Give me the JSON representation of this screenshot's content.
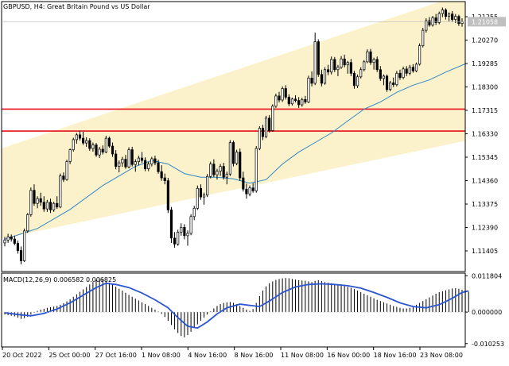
{
  "chart_data": {
    "type": "candlestick",
    "title": "GBPUSD, H4:  Great Britain Pound vs US Dollar",
    "price_axis": {
      "ylim": [
        1.106,
        1.219
      ],
      "tick_labels": [
        "1.21255",
        "1.20270",
        "1.19285",
        "1.18300",
        "1.17315",
        "1.16330",
        "1.15345",
        "1.14360",
        "1.13375",
        "1.12390",
        "1.11405"
      ],
      "current_price_label": "1.21058",
      "current_price": 1.21058
    },
    "x_axis": {
      "tick_labels": [
        "20 Oct 2022",
        "25 Oct 00:00",
        "27 Oct 16:00",
        "1 Nov 08:00",
        "4 Nov 16:00",
        "8 Nov 16:00",
        "11 Nov 08:00",
        "16 Nov 00:00",
        "18 Nov 16:00",
        "23 Nov 08:00"
      ]
    },
    "horizontal_lines": [
      {
        "price": 1.174,
        "color": "#e8101a"
      },
      {
        "price": 1.1648,
        "color": "#e8101a"
      }
    ],
    "price_channel": {
      "start": {
        "bar": 0,
        "upper": 1.158,
        "lower": 1.12
      },
      "end": {
        "bar": 142,
        "upper": 1.223,
        "lower": 1.161
      },
      "fill_color": "#fbf2cc"
    },
    "candles": [
      [
        1.118,
        1.1205,
        1.1165,
        1.1192
      ],
      [
        1.1192,
        1.1218,
        1.118,
        1.1205
      ],
      [
        1.1205,
        1.1215,
        1.1185,
        1.1196
      ],
      [
        1.1196,
        1.121,
        1.117,
        1.1178
      ],
      [
        1.1178,
        1.119,
        1.1135,
        1.1148
      ],
      [
        1.1148,
        1.1165,
        1.109,
        1.1105
      ],
      [
        1.1105,
        1.124,
        1.11,
        1.123
      ],
      [
        1.123,
        1.1305,
        1.1222,
        1.1298
      ],
      [
        1.1298,
        1.1412,
        1.129,
        1.14
      ],
      [
        1.14,
        1.1425,
        1.1335,
        1.1345
      ],
      [
        1.1345,
        1.1375,
        1.1325,
        1.1365
      ],
      [
        1.1365,
        1.139,
        1.1335,
        1.135
      ],
      [
        1.135,
        1.1375,
        1.131,
        1.1322
      ],
      [
        1.1322,
        1.136,
        1.131,
        1.135
      ],
      [
        1.135,
        1.1365,
        1.1305,
        1.1318
      ],
      [
        1.1318,
        1.1352,
        1.131,
        1.1345
      ],
      [
        1.1345,
        1.1375,
        1.1322,
        1.133
      ],
      [
        1.133,
        1.147,
        1.1325,
        1.146
      ],
      [
        1.146,
        1.1475,
        1.1435,
        1.1445
      ],
      [
        1.1445,
        1.1528,
        1.144,
        1.152
      ],
      [
        1.152,
        1.1575,
        1.151,
        1.157
      ],
      [
        1.157,
        1.162,
        1.1562,
        1.1612
      ],
      [
        1.1612,
        1.164,
        1.1595,
        1.1632
      ],
      [
        1.1632,
        1.165,
        1.1608,
        1.1618
      ],
      [
        1.1618,
        1.1645,
        1.159,
        1.1598
      ],
      [
        1.1598,
        1.1622,
        1.1582,
        1.1608
      ],
      [
        1.1608,
        1.1618,
        1.1565,
        1.1575
      ],
      [
        1.1575,
        1.16,
        1.1562,
        1.159
      ],
      [
        1.159,
        1.1598,
        1.154,
        1.1548
      ],
      [
        1.1548,
        1.1582,
        1.1535,
        1.1572
      ],
      [
        1.1572,
        1.1588,
        1.155,
        1.156
      ],
      [
        1.156,
        1.1628,
        1.1555,
        1.1618
      ],
      [
        1.1618,
        1.1625,
        1.1578,
        1.1585
      ],
      [
        1.1585,
        1.16,
        1.154,
        1.1552
      ],
      [
        1.1552,
        1.1568,
        1.1488,
        1.15
      ],
      [
        1.15,
        1.1525,
        1.1475,
        1.1515
      ],
      [
        1.1515,
        1.154,
        1.1498,
        1.153
      ],
      [
        1.153,
        1.1548,
        1.149,
        1.1498
      ],
      [
        1.1498,
        1.158,
        1.1492,
        1.157
      ],
      [
        1.157,
        1.1582,
        1.15,
        1.1508
      ],
      [
        1.1508,
        1.153,
        1.1478,
        1.152
      ],
      [
        1.152,
        1.1545,
        1.1505,
        1.1535
      ],
      [
        1.1535,
        1.156,
        1.1515,
        1.1525
      ],
      [
        1.1525,
        1.1538,
        1.148,
        1.149
      ],
      [
        1.149,
        1.152,
        1.148,
        1.151
      ],
      [
        1.151,
        1.154,
        1.15,
        1.1532
      ],
      [
        1.1532,
        1.1545,
        1.1505,
        1.1515
      ],
      [
        1.1515,
        1.1528,
        1.147,
        1.1478
      ],
      [
        1.1478,
        1.1505,
        1.144,
        1.1452
      ],
      [
        1.1452,
        1.147,
        1.1425,
        1.144
      ],
      [
        1.144,
        1.1452,
        1.1305,
        1.1318
      ],
      [
        1.1318,
        1.133,
        1.118,
        1.12
      ],
      [
        1.12,
        1.1225,
        1.116,
        1.1175
      ],
      [
        1.1175,
        1.1235,
        1.1168,
        1.1225
      ],
      [
        1.1225,
        1.1262,
        1.121,
        1.1245
      ],
      [
        1.1245,
        1.1258,
        1.1195,
        1.121
      ],
      [
        1.121,
        1.1232,
        1.1168,
        1.122
      ],
      [
        1.122,
        1.13,
        1.1212,
        1.129
      ],
      [
        1.129,
        1.1335,
        1.1275,
        1.1325
      ],
      [
        1.1325,
        1.142,
        1.1318,
        1.1408
      ],
      [
        1.1408,
        1.1425,
        1.136,
        1.1372
      ],
      [
        1.1372,
        1.139,
        1.134,
        1.138
      ],
      [
        1.138,
        1.1468,
        1.1372,
        1.1458
      ],
      [
        1.1458,
        1.152,
        1.145,
        1.151
      ],
      [
        1.151,
        1.153,
        1.1455,
        1.1465
      ],
      [
        1.1465,
        1.149,
        1.1445,
        1.148
      ],
      [
        1.148,
        1.151,
        1.146,
        1.15
      ],
      [
        1.15,
        1.1515,
        1.1445,
        1.1455
      ],
      [
        1.1455,
        1.1478,
        1.1425,
        1.1468
      ],
      [
        1.1468,
        1.161,
        1.146,
        1.16
      ],
      [
        1.16,
        1.1608,
        1.15,
        1.1512
      ],
      [
        1.1512,
        1.157,
        1.1505,
        1.156
      ],
      [
        1.156,
        1.1575,
        1.144,
        1.1452
      ],
      [
        1.1452,
        1.1478,
        1.1395,
        1.1405
      ],
      [
        1.1405,
        1.1428,
        1.1365,
        1.1385
      ],
      [
        1.1385,
        1.142,
        1.1375,
        1.141
      ],
      [
        1.141,
        1.143,
        1.139,
        1.1398
      ],
      [
        1.1398,
        1.1585,
        1.139,
        1.1575
      ],
      [
        1.1575,
        1.1668,
        1.1568,
        1.166
      ],
      [
        1.166,
        1.1675,
        1.161,
        1.1625
      ],
      [
        1.1625,
        1.1712,
        1.1618,
        1.1702
      ],
      [
        1.1702,
        1.1715,
        1.1642,
        1.165
      ],
      [
        1.165,
        1.176,
        1.1645,
        1.1752
      ],
      [
        1.1752,
        1.1805,
        1.1745,
        1.1795
      ],
      [
        1.1795,
        1.1812,
        1.1768,
        1.1778
      ],
      [
        1.1778,
        1.1835,
        1.177,
        1.1826
      ],
      [
        1.1826,
        1.184,
        1.178,
        1.179
      ],
      [
        1.179,
        1.1802,
        1.1752,
        1.1762
      ],
      [
        1.1762,
        1.1788,
        1.1755,
        1.1782
      ],
      [
        1.1782,
        1.1798,
        1.1768,
        1.1776
      ],
      [
        1.1776,
        1.179,
        1.1745,
        1.1758
      ],
      [
        1.1758,
        1.1788,
        1.175,
        1.178
      ],
      [
        1.178,
        1.1795,
        1.1762,
        1.177
      ],
      [
        1.177,
        1.188,
        1.1765,
        1.187
      ],
      [
        1.187,
        1.1898,
        1.1835,
        1.1848
      ],
      [
        1.1848,
        1.206,
        1.184,
        1.2022
      ],
      [
        1.2022,
        1.2032,
        1.1875,
        1.1885
      ],
      [
        1.1885,
        1.1905,
        1.1835,
        1.1848
      ],
      [
        1.1848,
        1.1915,
        1.1842,
        1.1905
      ],
      [
        1.1905,
        1.1925,
        1.1882,
        1.1895
      ],
      [
        1.1895,
        1.196,
        1.1885,
        1.1948
      ],
      [
        1.1948,
        1.1958,
        1.1895,
        1.1905
      ],
      [
        1.1905,
        1.1925,
        1.1878,
        1.1915
      ],
      [
        1.1915,
        1.1962,
        1.1908,
        1.195
      ],
      [
        1.195,
        1.1968,
        1.1915,
        1.1925
      ],
      [
        1.1925,
        1.1942,
        1.1888,
        1.1935
      ],
      [
        1.1935,
        1.195,
        1.1878,
        1.189
      ],
      [
        1.189,
        1.19,
        1.1825,
        1.1838
      ],
      [
        1.1838,
        1.1885,
        1.1828,
        1.1875
      ],
      [
        1.1875,
        1.1915,
        1.1868,
        1.1905
      ],
      [
        1.1905,
        1.1945,
        1.1898,
        1.1938
      ],
      [
        1.1938,
        1.199,
        1.1932,
        1.198
      ],
      [
        1.198,
        1.1992,
        1.1925,
        1.1935
      ],
      [
        1.1935,
        1.1955,
        1.1905,
        1.1948
      ],
      [
        1.1948,
        1.196,
        1.1895,
        1.1905
      ],
      [
        1.1905,
        1.192,
        1.1858,
        1.1868
      ],
      [
        1.1868,
        1.1885,
        1.184,
        1.1878
      ],
      [
        1.1878,
        1.1885,
        1.1812,
        1.1822
      ],
      [
        1.1822,
        1.1858,
        1.1815,
        1.185
      ],
      [
        1.185,
        1.1872,
        1.1832,
        1.1842
      ],
      [
        1.1842,
        1.19,
        1.1835,
        1.189
      ],
      [
        1.189,
        1.1905,
        1.1862,
        1.1872
      ],
      [
        1.1872,
        1.1918,
        1.1865,
        1.1908
      ],
      [
        1.1908,
        1.192,
        1.1878,
        1.189
      ],
      [
        1.189,
        1.1925,
        1.1882,
        1.1915
      ],
      [
        1.1915,
        1.1928,
        1.1892,
        1.19
      ],
      [
        1.19,
        1.1935,
        1.1895,
        1.1928
      ],
      [
        1.1928,
        1.2015,
        1.1922,
        1.2005
      ],
      [
        1.2005,
        1.208,
        1.1998,
        1.207
      ],
      [
        1.207,
        1.212,
        1.206,
        1.211
      ],
      [
        1.211,
        1.2125,
        1.2085,
        1.2092
      ],
      [
        1.2092,
        1.213,
        1.2085,
        1.2122
      ],
      [
        1.2122,
        1.2138,
        1.2092,
        1.2102
      ],
      [
        1.2102,
        1.2148,
        1.2095,
        1.214
      ],
      [
        1.214,
        1.2165,
        1.2125,
        1.2155
      ],
      [
        1.2155,
        1.2162,
        1.2115,
        1.2128
      ],
      [
        1.2128,
        1.2145,
        1.2108,
        1.2138
      ],
      [
        1.2138,
        1.215,
        1.2105,
        1.2115
      ],
      [
        1.2115,
        1.2138,
        1.21,
        1.2128
      ],
      [
        1.2128,
        1.2135,
        1.2088,
        1.2098
      ],
      [
        1.2098,
        1.212,
        1.2085,
        1.2106
      ]
    ],
    "moving_average": {
      "color": "#2f86c8",
      "points": [
        [
          0,
          1.1195
        ],
        [
          10,
          1.124
        ],
        [
          20,
          1.132
        ],
        [
          30,
          1.142
        ],
        [
          40,
          1.15
        ],
        [
          45,
          1.1525
        ],
        [
          50,
          1.151
        ],
        [
          55,
          1.147
        ],
        [
          60,
          1.1455
        ],
        [
          65,
          1.1455
        ],
        [
          70,
          1.1448
        ],
        [
          75,
          1.143
        ],
        [
          80,
          1.1445
        ],
        [
          85,
          1.151
        ],
        [
          90,
          1.156
        ],
        [
          95,
          1.16
        ],
        [
          100,
          1.164
        ],
        [
          105,
          1.169
        ],
        [
          110,
          1.174
        ],
        [
          115,
          1.177
        ],
        [
          120,
          1.181
        ],
        [
          125,
          1.184
        ],
        [
          130,
          1.1862
        ],
        [
          135,
          1.1895
        ],
        [
          142,
          1.1935
        ]
      ]
    },
    "macd": {
      "label": "MACD(12,26,9) 0.006582 0.006825",
      "ylim": [
        -0.01135,
        0.0127
      ],
      "tick_labels": [
        "0.011804",
        "0.000000",
        "-0.010253"
      ],
      "tick_values": [
        0.011804,
        0.0,
        -0.010253
      ],
      "histogram_color": "#000000",
      "signal_color": "#2a56d1",
      "histogram": [
        -0.0008,
        -0.001,
        -0.0012,
        -0.0014,
        -0.0018,
        -0.0022,
        -0.002,
        -0.0015,
        -0.0008,
        -0.0002,
        0.0004,
        0.0008,
        0.0011,
        0.0014,
        0.0016,
        0.0018,
        0.002,
        0.0024,
        0.0029,
        0.0035,
        0.0042,
        0.005,
        0.0058,
        0.0066,
        0.0074,
        0.0082,
        0.009,
        0.0098,
        0.0105,
        0.011,
        0.0108,
        0.0102,
        0.0096,
        0.009,
        0.0083,
        0.0076,
        0.007,
        0.0063,
        0.0056,
        0.005,
        0.0044,
        0.0038,
        0.0032,
        0.0026,
        0.002,
        0.0014,
        0.0008,
        0.0002,
        -0.0006,
        -0.0016,
        -0.0028,
        -0.0042,
        -0.0056,
        -0.0068,
        -0.0078,
        -0.0082,
        -0.0075,
        -0.0064,
        -0.0052,
        -0.004,
        -0.0028,
        -0.0018,
        -0.0008,
        0.0002,
        0.0012,
        0.002,
        0.0026,
        0.003,
        0.0032,
        0.0033,
        0.003,
        0.0026,
        0.002,
        0.0014,
        0.0008,
        0.0004,
        0.001,
        0.003,
        0.0052,
        0.007,
        0.0084,
        0.0094,
        0.01,
        0.0105,
        0.0108,
        0.011,
        0.0111,
        0.011,
        0.0108,
        0.0106,
        0.0104,
        0.0103,
        0.0102,
        0.01,
        0.0098,
        0.0102,
        0.0104,
        0.0101,
        0.0098,
        0.0096,
        0.0094,
        0.0092,
        0.009,
        0.0088,
        0.0085,
        0.0082,
        0.0079,
        0.0075,
        0.007,
        0.0065,
        0.006,
        0.0055,
        0.005,
        0.0045,
        0.004,
        0.0036,
        0.0032,
        0.0028,
        0.0024,
        0.002,
        0.0017,
        0.0014,
        0.0012,
        0.0012,
        0.0014,
        0.0018,
        0.0024,
        0.003,
        0.0036,
        0.0042,
        0.0048,
        0.0054,
        0.006,
        0.0065,
        0.0068,
        0.0071,
        0.0074,
        0.0077,
        0.0078,
        0.0076,
        0.0073,
        0.007,
        0.0066
      ],
      "signal_points": [
        [
          0,
          -0.0002
        ],
        [
          4,
          -0.0008
        ],
        [
          8,
          -0.0012
        ],
        [
          12,
          -0.0004
        ],
        [
          16,
          0.001
        ],
        [
          20,
          0.003
        ],
        [
          24,
          0.0055
        ],
        [
          28,
          0.008
        ],
        [
          31,
          0.0094
        ],
        [
          34,
          0.009
        ],
        [
          38,
          0.008
        ],
        [
          42,
          0.0062
        ],
        [
          46,
          0.004
        ],
        [
          50,
          0.0014
        ],
        [
          53,
          -0.0018
        ],
        [
          56,
          -0.0046
        ],
        [
          59,
          -0.0052
        ],
        [
          62,
          -0.0032
        ],
        [
          65,
          -0.0006
        ],
        [
          68,
          0.0014
        ],
        [
          72,
          0.0026
        ],
        [
          75,
          0.0022
        ],
        [
          78,
          0.0018
        ],
        [
          81,
          0.0036
        ],
        [
          85,
          0.0064
        ],
        [
          89,
          0.0082
        ],
        [
          93,
          0.009
        ],
        [
          97,
          0.0092
        ],
        [
          101,
          0.009
        ],
        [
          105,
          0.0086
        ],
        [
          109,
          0.0078
        ],
        [
          113,
          0.0064
        ],
        [
          117,
          0.0048
        ],
        [
          121,
          0.003
        ],
        [
          125,
          0.0018
        ],
        [
          129,
          0.0014
        ],
        [
          133,
          0.0024
        ],
        [
          137,
          0.0045
        ],
        [
          140,
          0.0064
        ],
        [
          142,
          0.0069
        ]
      ]
    }
  }
}
